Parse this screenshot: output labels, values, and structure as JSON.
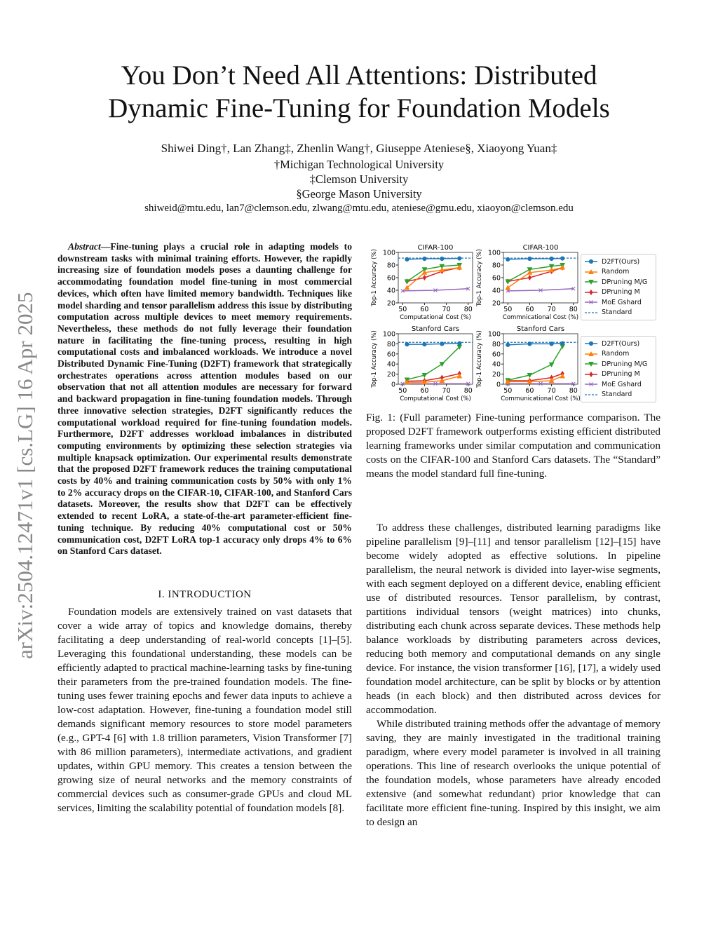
{
  "title": [
    "You Don’t Need All Attentions: Distributed",
    "Dynamic Fine-Tuning for Foundation Models"
  ],
  "authors": {
    "line": "Shiwei Ding†, Lan Zhang‡, Zhenlin Wang†, Giuseppe Ateniese§, Xiaoyong Yuan‡",
    "aff1": "†Michigan Technological University",
    "aff2": "‡Clemson University",
    "aff3": "§George Mason University",
    "emails": "shiweid@mtu.edu, lan7@clemson.edu, zlwang@mtu.edu, ateniese@gmu.edu, xiaoyon@clemson.edu"
  },
  "watermark": "arXiv:2504.12471v1  [cs.LG]  16 Apr 2025",
  "abstract": {
    "label": "Abstract",
    "text": "—Fine-tuning plays a crucial role in adapting models to downstream tasks with minimal training efforts. However, the rapidly increasing size of foundation models poses a daunting challenge for accommodating foundation model fine-tuning in most commercial devices, which often have limited memory bandwidth. Techniques like model sharding and tensor parallelism address this issue by distributing computation across multiple devices to meet memory requirements. Nevertheless, these methods do not fully leverage their foundation nature in facilitating the fine-tuning process, resulting in high computational costs and imbalanced workloads. We introduce a novel Distributed Dynamic Fine-Tuning (D2FT) framework that strategically orchestrates operations across attention modules based on our observation that not all attention modules are necessary for forward and backward propagation in fine-tuning foundation models. Through three innovative selection strategies, D2FT significantly reduces the computational workload required for fine-tuning foundation models. Furthermore, D2FT addresses workload imbalances in distributed computing environments by optimizing these selection strategies via multiple knapsack optimization. Our experimental results demonstrate that the proposed D2FT framework reduces the training computational costs by 40% and training communication costs by 50% with only 1% to 2% accuracy drops on the CIFAR-10, CIFAR-100, and Stanford Cars datasets. Moreover, the results show that D2FT can be effectively extended to recent LoRA, a state-of-the-art parameter-efficient fine-tuning technique. By reducing 40% computational cost or 50% communication cost, D2FT LoRA top-1 accuracy only drops 4% to 6% on Stanford Cars dataset."
  },
  "section": "I. INTRODUCTION",
  "intro": [
    "Foundation models are extensively trained on vast datasets that cover a wide array of topics and knowledge domains, thereby facilitating a deep understanding of real-world concepts [1]–[5]. Leveraging this foundational understanding, these models can be efficiently adapted to practical machine-learning tasks by fine-tuning their parameters from the pre-trained foundation models. The fine-tuning uses fewer training epochs and fewer data inputs to achieve a low-cost adaptation. However, fine-tuning a foundation model still demands significant memory resources to store model parameters (e.g., GPT-4 [6] with 1.8 trillion parameters, Vision Transformer [7] with 86 million parameters), intermediate activations, and gradient updates, within GPU memory. This creates a tension between the growing size of neural networks and the memory constraints of commercial devices such as consumer-grade GPUs and cloud ML services, limiting the scalability potential of foundation models [8]."
  ],
  "caption": "Fig. 1: (Full parameter) Fine-tuning performance comparison. The proposed D2FT framework outperforms existing efficient distributed learning frameworks under similar computation and communication costs on the CIFAR-100 and Stanford Cars datasets. The “Standard” means the model standard full fine-tuning.",
  "right": [
    "To address these challenges, distributed learning paradigms like pipeline parallelism [9]–[11] and tensor parallelism [12]–[15] have become widely adopted as effective solutions. In pipeline parallelism, the neural network is divided into layer-wise segments, with each segment deployed on a different device, enabling efficient use of distributed resources. Tensor parallelism, by contrast, partitions individual tensors (weight matrices) into chunks, distributing each chunk across separate devices. These methods help balance workloads by distributing parameters across devices, reducing both memory and computational demands on any single device. For instance, the vision transformer [16], [17], a widely used foundation model architecture, can be split by blocks or by attention heads (in each block) and then distributed across devices for accommodation.",
    "While distributed training methods offer the advantage of memory saving, they are mainly investigated in the traditional training paradigm, where every model parameter is involved in all training operations. This line of research overlooks the unique potential of the foundation models, whose parameters have already encoded extensive (and somewhat redundant) prior knowledge that can facilitate more efficient fine-tuning. Inspired by this insight, we aim to design an"
  ],
  "legend": [
    {
      "name": "D2FT(Ours)",
      "color": "#1f77b4",
      "marker": "circle"
    },
    {
      "name": "Random",
      "color": "#ff7f0e",
      "marker": "triangle-up"
    },
    {
      "name": "DPruning M/G",
      "color": "#2ca02c",
      "marker": "triangle-down"
    },
    {
      "name": "DPruning M",
      "color": "#d62728",
      "marker": "diamond"
    },
    {
      "name": "MoE Gshard",
      "color": "#9467bd",
      "marker": "x"
    },
    {
      "name": "Standard",
      "color": "#1f77b4",
      "marker": "dashed"
    }
  ],
  "chart_data": [
    {
      "type": "line",
      "title": "CIFAR-100",
      "xlabel": "Computational Cost (%)",
      "ylabel": "Top-1 Accuracy (%)",
      "xticks": [
        50,
        60,
        70,
        80
      ],
      "yticks": [
        20,
        40,
        60,
        80,
        100
      ],
      "ylim": [
        20,
        100
      ],
      "xlim": [
        48,
        82
      ],
      "standard": 91,
      "series": [
        {
          "name": "D2FT(Ours)",
          "x": [
            52,
            60,
            68,
            76
          ],
          "y": [
            89,
            90,
            90,
            90.5
          ]
        },
        {
          "name": "Random",
          "x": [
            52,
            60,
            68,
            76
          ],
          "y": [
            44,
            68,
            72,
            76
          ]
        },
        {
          "name": "DPruning M/G",
          "x": [
            52,
            60,
            68,
            76
          ],
          "y": [
            54,
            73,
            78,
            80
          ]
        },
        {
          "name": "DPruning M",
          "x": [
            52,
            60,
            68,
            76
          ],
          "y": [
            54,
            60,
            70,
            76
          ]
        },
        {
          "name": "MoE Gshard",
          "x": [
            50,
            65,
            80
          ],
          "y": [
            39,
            40,
            42.5
          ]
        }
      ]
    },
    {
      "type": "line",
      "title": "CIFAR-100",
      "xlabel": "Commnicational Cost (%)",
      "ylabel": "Top-1 Accuracy (%)",
      "xticks": [
        50,
        60,
        70,
        80
      ],
      "yticks": [
        20,
        40,
        60,
        80,
        100
      ],
      "ylim": [
        20,
        100
      ],
      "xlim": [
        48,
        82
      ],
      "standard": 91,
      "series": [
        {
          "name": "D2FT(Ours)",
          "x": [
            50,
            60,
            70,
            75
          ],
          "y": [
            89,
            90,
            90,
            90.5
          ]
        },
        {
          "name": "Random",
          "x": [
            50,
            60,
            70,
            75
          ],
          "y": [
            44,
            68,
            72,
            76
          ]
        },
        {
          "name": "DPruning M/G",
          "x": [
            50,
            60,
            70,
            75
          ],
          "y": [
            54,
            73,
            78,
            80
          ]
        },
        {
          "name": "DPruning M",
          "x": [
            50,
            60,
            70,
            75
          ],
          "y": [
            54,
            60,
            70,
            76
          ]
        },
        {
          "name": "MoE Gshard",
          "x": [
            50,
            65,
            80
          ],
          "y": [
            39,
            40,
            42.5
          ]
        }
      ]
    },
    {
      "type": "line",
      "title": "Stanford Cars",
      "xlabel": "Computational Cost (%)",
      "ylabel": "Top-1 Accuracy (%)",
      "xticks": [
        50,
        60,
        70,
        80
      ],
      "yticks": [
        0,
        20,
        40,
        60,
        80,
        100
      ],
      "ylim": [
        0,
        100
      ],
      "xlim": [
        48,
        82
      ],
      "standard": 83,
      "series": [
        {
          "name": "D2FT(Ours)",
          "x": [
            52,
            60,
            68,
            76
          ],
          "y": [
            79,
            79,
            80,
            81
          ]
        },
        {
          "name": "Random",
          "x": [
            52,
            60,
            68,
            76
          ],
          "y": [
            4,
            4,
            7,
            16
          ]
        },
        {
          "name": "DPruning M/G",
          "x": [
            52,
            60,
            68,
            76
          ],
          "y": [
            9,
            18,
            40,
            74
          ]
        },
        {
          "name": "DPruning M",
          "x": [
            52,
            60,
            68,
            76
          ],
          "y": [
            6,
            7,
            13,
            21
          ]
        },
        {
          "name": "MoE Gshard",
          "x": [
            50,
            65,
            80
          ],
          "y": [
            1,
            1,
            1
          ]
        }
      ]
    },
    {
      "type": "line",
      "title": "Stanford Cars",
      "xlabel": "Communicational Cost (%)",
      "ylabel": "Top-1 Accuracy (%)",
      "xticks": [
        50,
        60,
        70,
        80
      ],
      "yticks": [
        0,
        20,
        40,
        60,
        80,
        100
      ],
      "ylim": [
        0,
        100
      ],
      "xlim": [
        48,
        82
      ],
      "standard": 83,
      "series": [
        {
          "name": "D2FT(Ours)",
          "x": [
            50,
            60,
            70,
            75
          ],
          "y": [
            78,
            80,
            80,
            81
          ]
        },
        {
          "name": "Random",
          "x": [
            50,
            60,
            70,
            75
          ],
          "y": [
            5,
            5,
            7,
            16
          ]
        },
        {
          "name": "DPruning M/G",
          "x": [
            50,
            60,
            70,
            75
          ],
          "y": [
            8,
            18,
            39,
            75
          ]
        },
        {
          "name": "DPruning M",
          "x": [
            50,
            60,
            70,
            75
          ],
          "y": [
            7,
            7,
            13,
            21
          ]
        },
        {
          "name": "MoE Gshard",
          "x": [
            50,
            65,
            80
          ],
          "y": [
            1,
            1,
            1
          ]
        }
      ]
    }
  ]
}
